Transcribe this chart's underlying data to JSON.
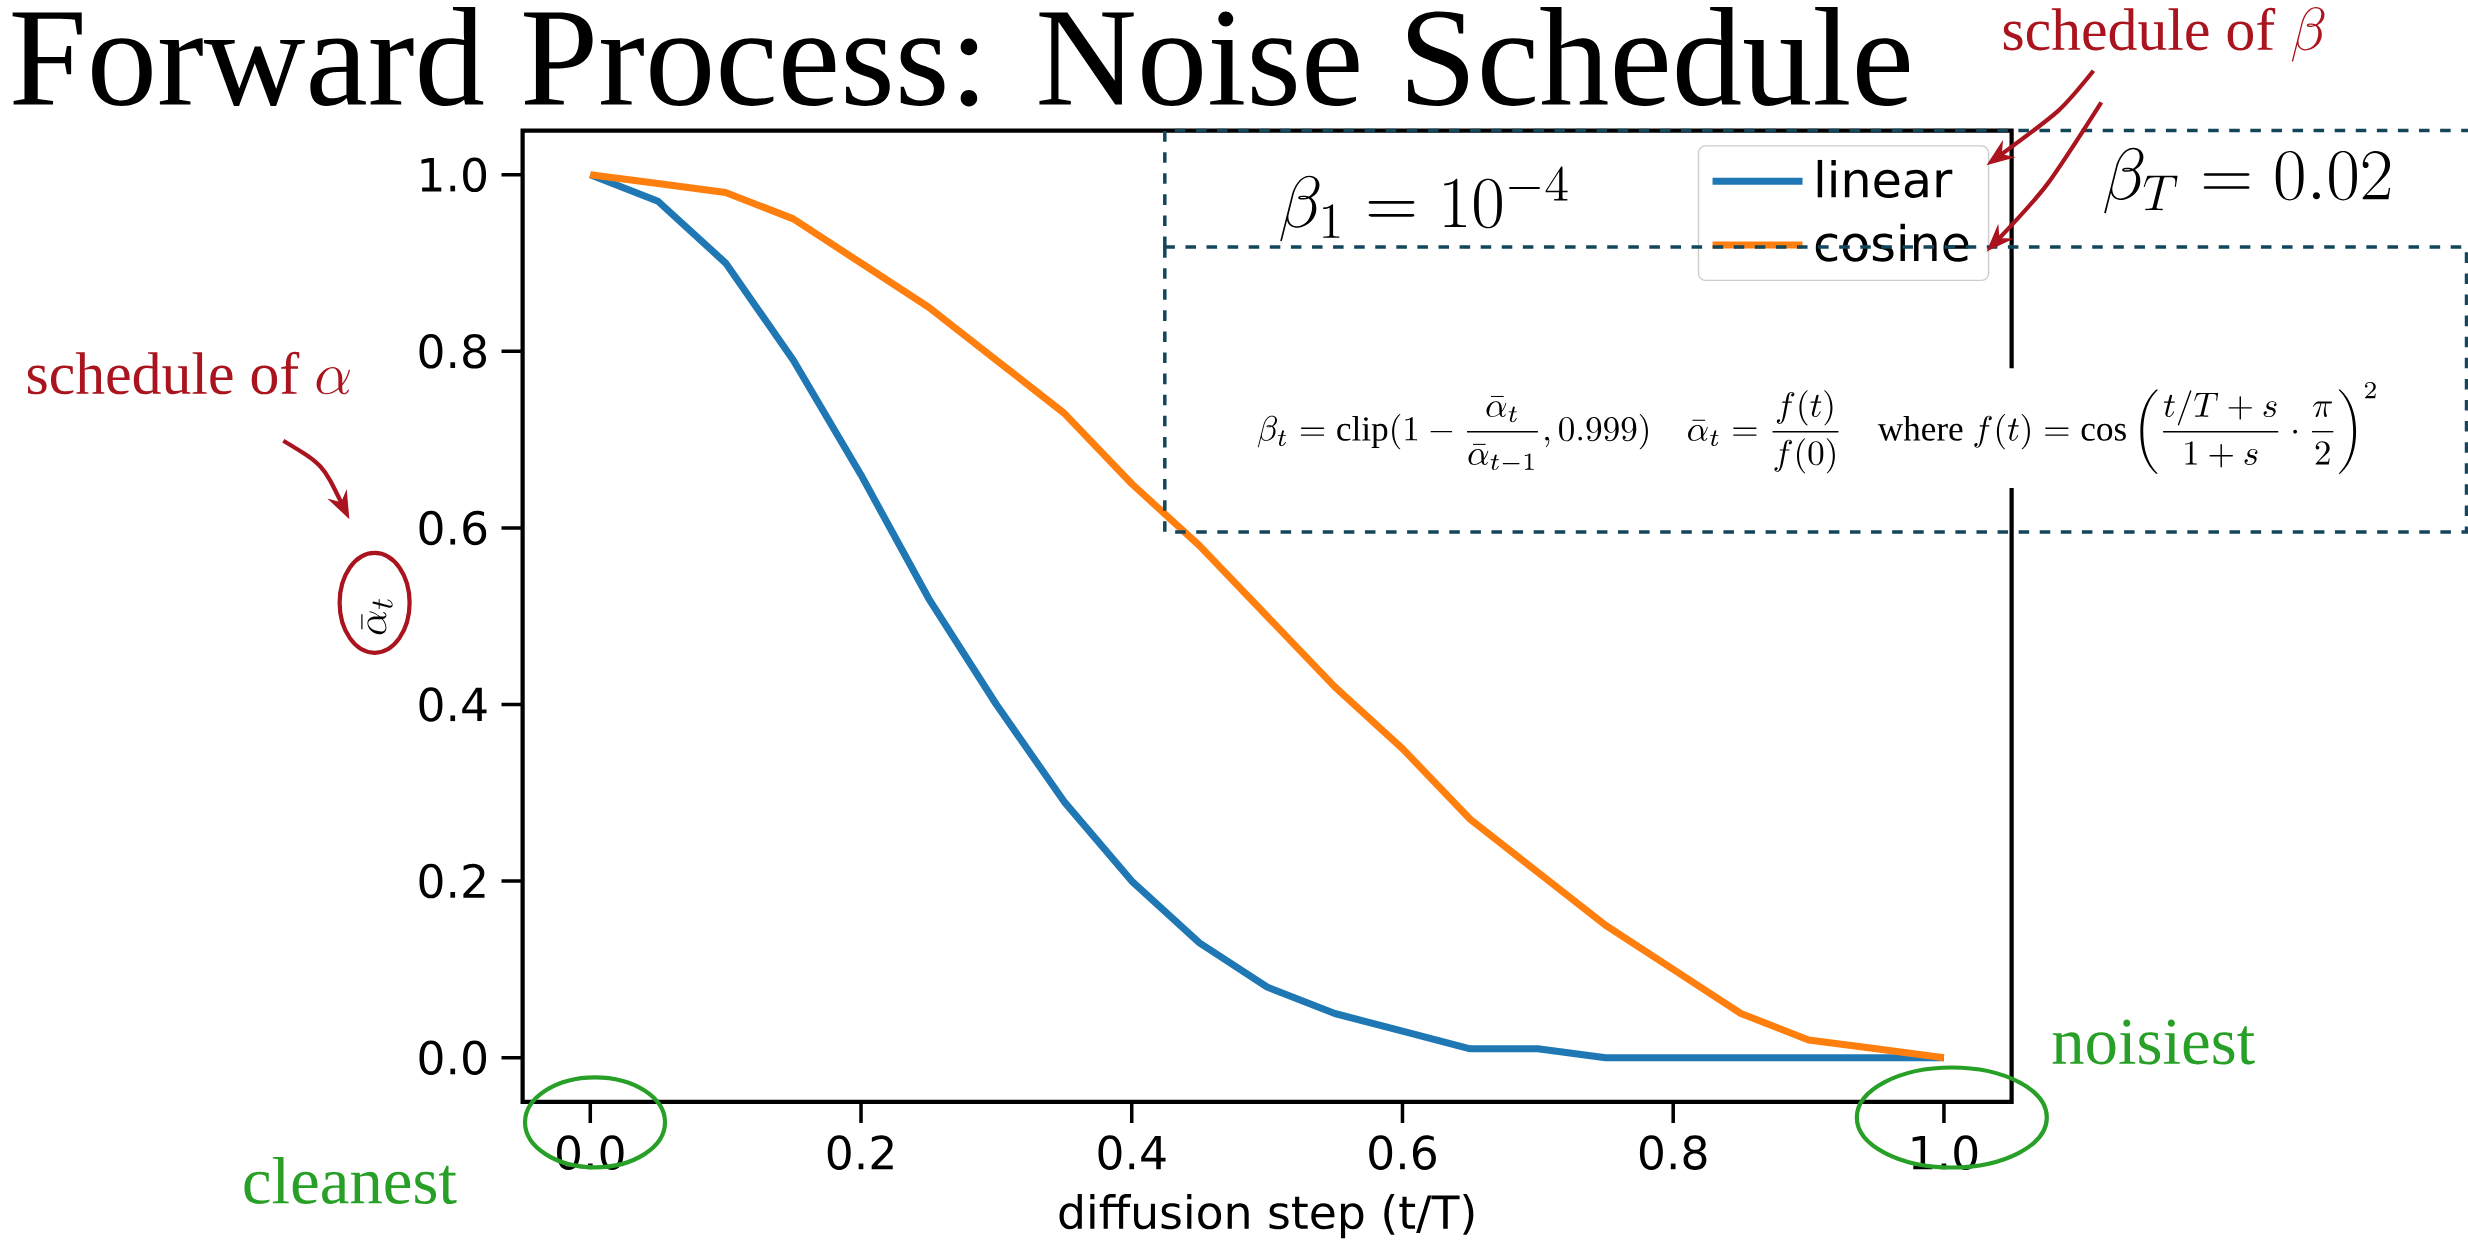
{
  "chart_data": {
    "type": "line",
    "title": "Forward Process: Noise Schedule",
    "xlabel": "diffusion step (t/T)",
    "ylabel": "\\bar{\\alpha}_t",
    "xlim": [
      -0.05,
      1.05
    ],
    "ylim": [
      -0.05,
      1.05
    ],
    "xticks": [
      {
        "value": 0,
        "label": "0.0"
      },
      {
        "value": 0.2,
        "label": "0.2"
      },
      {
        "value": 0.4,
        "label": "0.4"
      },
      {
        "value": 0.6,
        "label": "0.6"
      },
      {
        "value": 0.8,
        "label": "0.8"
      },
      {
        "value": 1,
        "label": "1.0"
      }
    ],
    "yticks": [
      {
        "value": 0,
        "label": "0.0"
      },
      {
        "value": 0.2,
        "label": "0.2"
      },
      {
        "value": 0.4,
        "label": "0.4"
      },
      {
        "value": 0.6,
        "label": "0.6"
      },
      {
        "value": 0.8,
        "label": "0.8"
      },
      {
        "value": 1,
        "label": "1.0"
      }
    ],
    "legend": "top right",
    "series": [
      {
        "name": "linear",
        "color": "#1f77b4",
        "x": [
          0,
          0.05,
          0.1,
          0.15,
          0.2,
          0.25,
          0.3,
          0.35,
          0.4,
          0.45,
          0.5,
          0.55,
          0.6,
          0.65,
          0.7,
          0.75,
          0.8,
          0.85,
          0.9,
          0.95,
          1
        ],
        "values": [
          1,
          0.97,
          0.9,
          0.79,
          0.66,
          0.52,
          0.4,
          0.29,
          0.2,
          0.13,
          0.08,
          0.05,
          0.03,
          0.01,
          0.01,
          0,
          0,
          0,
          0,
          0,
          0
        ]
      },
      {
        "name": "cosine",
        "color": "#ff7f0e",
        "x": [
          0,
          0.05,
          0.1,
          0.15,
          0.2,
          0.25,
          0.3,
          0.35,
          0.4,
          0.45,
          0.5,
          0.55,
          0.6,
          0.65,
          0.7,
          0.75,
          0.8,
          0.85,
          0.9,
          0.95,
          1
        ],
        "values": [
          1,
          0.99,
          0.98,
          0.95,
          0.9,
          0.85,
          0.79,
          0.73,
          0.65,
          0.58,
          0.5,
          0.42,
          0.35,
          0.27,
          0.21,
          0.15,
          0.1,
          0.05,
          0.02,
          0.01,
          0
        ]
      }
    ],
    "annotations": [
      "\\mbox{schedule of }\\beta",
      "\\beta_1 = 10^{-4}",
      "\\beta_T = 0.02",
      "\\beta_t = \\mathrm{clip}(1 - \\frac{\\bar{\\alpha}_t}{\\bar{\\alpha}_{t-1}}, 0.999) \\quad \\bar{\\alpha}_t = \\frac{f(t)}{f(0)} \\quad \\mbox{where } f(t) = \\cos\\left(\\frac{t/T + s}{1+s} \\cdot \\frac{\\pi}{2}\\right)^2",
      "\\mbox{schedule of }\\alpha",
      "cleanest",
      "noisiest"
    ]
  }
}
